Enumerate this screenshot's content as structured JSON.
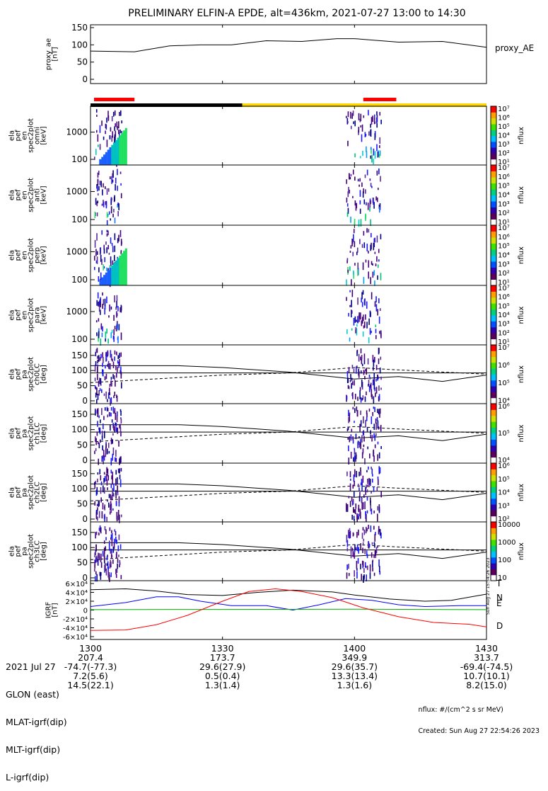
{
  "title": "PRELIMINARY ELFIN-A EPDE, alt=436km, 2021-07-27 13:00 to 14:30",
  "colors": {
    "axis": "#000000",
    "science_bar": "#ff0000",
    "fgm_bar_dark": "#000000",
    "fgm_bar_light": "#ffd700",
    "bz_line": "#000000",
    "bx_line": "#0000ff",
    "by_line": "#00aa00",
    "bt_line": "#ff0000"
  },
  "chart_data": [
    {
      "type": "line",
      "ylabel": "proxy_ae [nT]",
      "ylim": [
        0,
        150
      ],
      "yticks": [
        "0",
        "50",
        "100",
        "150"
      ],
      "series": [
        {
          "name": "proxy_AE",
          "x_min": [
            0,
            10,
            18,
            25,
            32,
            40,
            48,
            56,
            60,
            70,
            80,
            90
          ],
          "values": [
            82,
            80,
            97,
            100,
            100,
            112,
            110,
            118,
            118,
            108,
            110,
            93
          ]
        }
      ]
    },
    {
      "type": "heatmap",
      "ylabel": "ela pef en spec2plot omni [keV]",
      "scale": "log",
      "yticks": [
        "100",
        "1000"
      ],
      "colorbar": {
        "label": "nflux",
        "ticks": [
          "10¹",
          "10²",
          "10³",
          "10⁴",
          "10⁵",
          "10⁶",
          "10⁷"
        ]
      }
    },
    {
      "type": "heatmap",
      "ylabel": "ela pef en spec2plot anti [keV]",
      "scale": "log",
      "yticks": [
        "100",
        "1000"
      ],
      "colorbar": {
        "label": "nflux",
        "ticks": [
          "10¹",
          "10²",
          "10³",
          "10⁴",
          "10⁵",
          "10⁶",
          "10⁷"
        ]
      }
    },
    {
      "type": "heatmap",
      "ylabel": "ela pef en spec2plot perp [keV]",
      "scale": "log",
      "yticks": [
        "100",
        "1000"
      ],
      "colorbar": {
        "label": "nflux",
        "ticks": [
          "10¹",
          "10²",
          "10³",
          "10⁴",
          "10⁵",
          "10⁶",
          "10⁷"
        ]
      }
    },
    {
      "type": "heatmap",
      "ylabel": "ela pef en spec2plot para [keV]",
      "scale": "log",
      "yticks": [
        "100",
        "1000"
      ],
      "colorbar": {
        "label": "nflux",
        "ticks": [
          "10¹",
          "10²",
          "10³",
          "10⁴",
          "10⁵",
          "10⁶",
          "10⁷"
        ]
      }
    },
    {
      "type": "heatmap",
      "ylabel": "ela pef pa spec2plot ch0LC [deg]",
      "ylim": [
        0,
        180
      ],
      "yticks": [
        "0",
        "50",
        "100",
        "150"
      ],
      "colorbar": {
        "label": "nflux",
        "ticks": [
          "10⁴",
          "10⁵",
          "10⁶",
          "10⁷"
        ]
      }
    },
    {
      "type": "heatmap",
      "ylabel": "ela pef pa spec2plot ch1LC [deg]",
      "ylim": [
        0,
        180
      ],
      "yticks": [
        "0",
        "50",
        "100",
        "150"
      ],
      "colorbar": {
        "label": "nflux",
        "ticks": [
          "10⁴",
          "10⁵",
          "10⁶"
        ]
      }
    },
    {
      "type": "heatmap",
      "ylabel": "ela pef pa spec2plot ch2LC [deg]",
      "ylim": [
        0,
        180
      ],
      "yticks": [
        "0",
        "50",
        "100",
        "150"
      ],
      "colorbar": {
        "label": "nflux",
        "ticks": [
          "10²",
          "10³",
          "10⁴",
          "10⁵",
          "10⁶"
        ]
      }
    },
    {
      "type": "heatmap",
      "ylabel": "ela pef pa spec2plot ch3LC [deg]",
      "ylim": [
        0,
        180
      ],
      "yticks": [
        "0",
        "50",
        "100",
        "150"
      ],
      "colorbar": {
        "label": "nflux",
        "ticks": [
          "10",
          "100",
          "1000",
          "10000"
        ]
      }
    },
    {
      "type": "line",
      "ylabel": "IGRF [nT]",
      "ylim": [
        -60000,
        60000
      ],
      "yticks": [
        "-6×10⁴",
        "-4×10⁴",
        "-2×10⁴",
        "0",
        "2×10⁴",
        "4×10⁴",
        "6×10⁴"
      ],
      "series": [
        {
          "name": "T",
          "x_min": [
            0,
            8,
            15,
            22,
            30,
            38,
            46,
            55,
            60,
            68,
            76,
            82,
            90
          ],
          "values": [
            46000,
            48000,
            43000,
            35000,
            33000,
            40000,
            45000,
            41000,
            34000,
            25000,
            20000,
            22000,
            36000
          ]
        },
        {
          "name": "N",
          "x_min": [
            0,
            8,
            15,
            20,
            25,
            32,
            40,
            46,
            52,
            58,
            64,
            70,
            76,
            84,
            90
          ],
          "values": [
            8000,
            17000,
            30000,
            30000,
            20000,
            10000,
            10000,
            0,
            12000,
            26000,
            22000,
            12000,
            8000,
            10000,
            10000
          ]
        },
        {
          "name": "E",
          "x_min": [
            0,
            30,
            60,
            90
          ],
          "values": [
            1000,
            1500,
            2000,
            1000
          ]
        },
        {
          "name": "D",
          "x_min": [
            0,
            8,
            15,
            22,
            30,
            36,
            42,
            48,
            55,
            62,
            70,
            78,
            86,
            90
          ],
          "values": [
            -46000,
            -45000,
            -33000,
            -12000,
            20000,
            42000,
            48000,
            42000,
            28000,
            5000,
            -15000,
            -28000,
            -32000,
            -38000
          ]
        }
      ]
    }
  ],
  "x_axis": {
    "ticks": [
      "1300",
      "1330",
      "1400",
      "1430"
    ],
    "rows": [
      {
        "label": "2021 Jul 27",
        "values": [
          "1300",
          "1330",
          "1400",
          "1430"
        ]
      },
      {
        "label": "GLON (east)",
        "values": [
          "207.4",
          "173.7",
          "349.9",
          "313.7"
        ]
      },
      {
        "label": "MLAT-igrf(dip)",
        "values": [
          "-74.7(-77.3)",
          "29.6(27.9)",
          "29.6(35.7)",
          "-69.4(-74.5)"
        ]
      },
      {
        "label": "MLT-igrf(dip)",
        "values": [
          "7.2(5.6)",
          "0.5(0.4)",
          "13.3(13.4)",
          "10.7(10.1)"
        ]
      },
      {
        "label": "L-igrf(dip)",
        "values": [
          "14.5(22.1)",
          "1.3(1.4)",
          "1.3(1.6)",
          "8.2(15.0)"
        ]
      }
    ]
  },
  "footer": {
    "units": "nflux: #/(cm^2 s sr MeV)",
    "created": "Created: Sun Aug 27 22:54:26 2023",
    "side_stamp": "Sun Aug 27 15:54:26 2023"
  }
}
